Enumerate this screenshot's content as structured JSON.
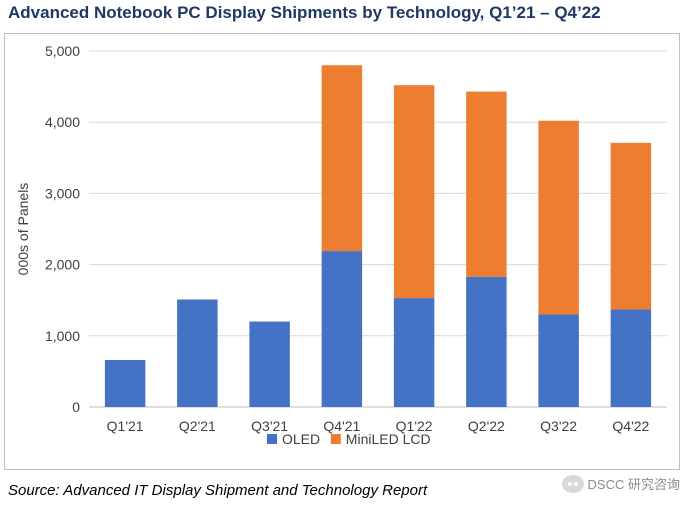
{
  "page": {
    "title": "Advanced Notebook PC Display Shipments by Technology, Q1’21 – Q4’22",
    "source": "Source: Advanced IT Display Shipment and Technology Report",
    "watermark": "DSCC 研究咨询"
  },
  "chart_data": {
    "type": "bar",
    "stacked": true,
    "title": "Advanced Notebook PC Display Shipments by Technology, Q1’21 – Q4’22",
    "xlabel": "",
    "ylabel": "000s of Panels",
    "categories": [
      "Q1'21",
      "Q2'21",
      "Q3'21",
      "Q4'21",
      "Q1'22",
      "Q2'22",
      "Q3'22",
      "Q4'22"
    ],
    "series": [
      {
        "name": "OLED",
        "color": "#4472c4",
        "values": [
          660,
          1510,
          1200,
          2190,
          1530,
          1830,
          1300,
          1370
        ]
      },
      {
        "name": "MiniLED LCD",
        "color": "#ed7d31",
        "values": [
          0,
          0,
          0,
          2610,
          2990,
          2600,
          2720,
          2340
        ]
      }
    ],
    "ylim": [
      0,
      5000
    ],
    "yticks": [
      0,
      1000,
      2000,
      3000,
      4000,
      5000
    ],
    "ytick_labels": [
      "0",
      "1,000",
      "2,000",
      "3,000",
      "4,000",
      "5,000"
    ],
    "grid": true,
    "legend_position": "bottom"
  }
}
